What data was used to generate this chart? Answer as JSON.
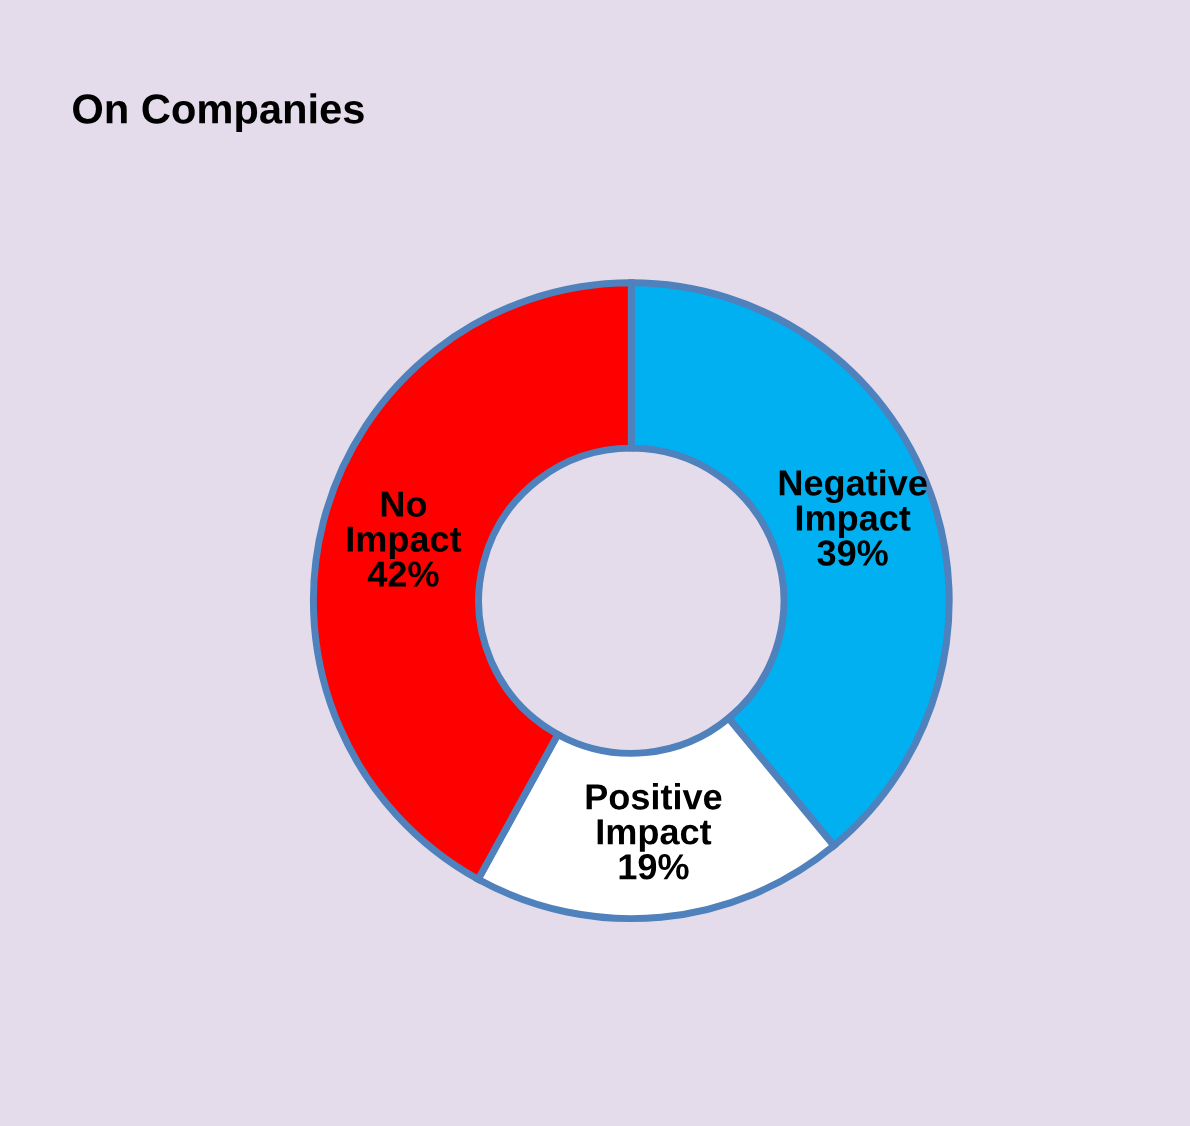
{
  "chart_data": {
    "type": "donut",
    "title": "On Companies",
    "categories": [
      "Negative Impact",
      "Positive Impact",
      "No Impact"
    ],
    "values": [
      39,
      19,
      42
    ],
    "value_labels": [
      "39%",
      "19%",
      "42%"
    ],
    "colors": [
      "#00b0f0",
      "#ffffff",
      "#ff0000"
    ]
  }
}
